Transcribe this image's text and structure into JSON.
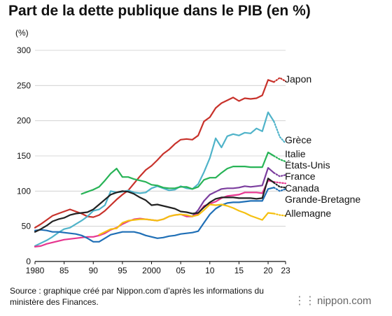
{
  "header": {
    "title": "Part de la dette publique dans le PIB (en %)",
    "unit": "(%)"
  },
  "footer": {
    "source": "Source : graphique créé par Nippon.com d’après les informations du ministère des Finances.",
    "brand": "nippon.com",
    "brand_icon": "nippon-logo-icon"
  },
  "chart_data": {
    "type": "line",
    "title": "Part de la dette publique dans le PIB (en %)",
    "ylabel": "(%)",
    "xlabel": "",
    "xlim": [
      1980,
      2023
    ],
    "ylim": [
      0,
      300
    ],
    "yticks": [
      0,
      50,
      100,
      150,
      200,
      250,
      300
    ],
    "xticks": [
      1980,
      1985,
      1990,
      1995,
      2000,
      2005,
      2010,
      2015,
      2020,
      2023
    ],
    "xtick_labels": [
      "1980",
      "85",
      "90",
      "95",
      "2000",
      "05",
      "10",
      "15",
      "20",
      "23"
    ],
    "grid": true,
    "legend": "right, end of lines",
    "projection_years": [
      2022,
      2023
    ],
    "series": [
      {
        "name": "Japon",
        "color": "#c8322b",
        "x": [
          1980,
          1981,
          1982,
          1983,
          1984,
          1985,
          1986,
          1987,
          1988,
          1989,
          1990,
          1991,
          1992,
          1993,
          1994,
          1995,
          1996,
          1997,
          1998,
          1999,
          2000,
          2001,
          2002,
          2003,
          2004,
          2005,
          2006,
          2007,
          2008,
          2009,
          2010,
          2011,
          2012,
          2013,
          2014,
          2015,
          2016,
          2017,
          2018,
          2019,
          2020,
          2021,
          2022,
          2023
        ],
        "values": [
          48,
          53,
          59,
          65,
          68,
          71,
          74,
          71,
          68,
          64,
          63,
          66,
          72,
          80,
          88,
          95,
          101,
          111,
          121,
          130,
          136,
          144,
          153,
          159,
          167,
          173,
          174,
          173,
          179,
          199,
          205,
          218,
          225,
          229,
          233,
          228,
          232,
          231,
          232,
          236,
          258,
          255,
          261,
          256
        ]
      },
      {
        "name": "Grèce",
        "color": "#4fb3c9",
        "x": [
          1980,
          1981,
          1982,
          1983,
          1984,
          1985,
          1986,
          1987,
          1988,
          1989,
          1990,
          1991,
          1992,
          1993,
          1994,
          1995,
          1996,
          1997,
          1998,
          1999,
          2000,
          2001,
          2002,
          2003,
          2004,
          2005,
          2006,
          2007,
          2008,
          2009,
          2010,
          2011,
          2012,
          2013,
          2014,
          2015,
          2016,
          2017,
          2018,
          2019,
          2020,
          2021,
          2022,
          2023
        ],
        "values": [
          22,
          26,
          30,
          35,
          41,
          46,
          48,
          53,
          58,
          64,
          72,
          74,
          80,
          100,
          98,
          99,
          101,
          98,
          97,
          98,
          104,
          107,
          104,
          101,
          102,
          107,
          104,
          103,
          110,
          127,
          147,
          175,
          162,
          178,
          181,
          179,
          183,
          182,
          189,
          185,
          212,
          199,
          177,
          168
        ]
      },
      {
        "name": "Italie",
        "color": "#27b356",
        "x": [
          1988,
          1989,
          1990,
          1991,
          1992,
          1993,
          1994,
          1995,
          1996,
          1997,
          1998,
          1999,
          2000,
          2001,
          2002,
          2003,
          2004,
          2005,
          2006,
          2007,
          2008,
          2009,
          2010,
          2011,
          2012,
          2013,
          2014,
          2015,
          2016,
          2017,
          2018,
          2019,
          2020,
          2021,
          2022,
          2023
        ],
        "values": [
          96,
          99,
          102,
          106,
          115,
          125,
          132,
          120,
          120,
          117,
          115,
          113,
          109,
          108,
          105,
          104,
          104,
          106,
          106,
          103,
          106,
          116,
          119,
          119,
          126,
          132,
          135,
          135,
          135,
          134,
          134,
          134,
          155,
          150,
          145,
          142
        ]
      },
      {
        "name": "États-Unis",
        "color": "#7b3d9e",
        "x": [
          2007,
          2008,
          2009,
          2010,
          2011,
          2012,
          2013,
          2014,
          2015,
          2016,
          2017,
          2018,
          2019,
          2020,
          2021,
          2022,
          2023
        ],
        "values": [
          64,
          73,
          86,
          95,
          99,
          103,
          104,
          104,
          105,
          107,
          106,
          107,
          108,
          133,
          126,
          121,
          123
        ]
      },
      {
        "name": "France",
        "color": "#e6368f",
        "x": [
          1980,
          1981,
          1982,
          1983,
          1984,
          1985,
          1986,
          1987,
          1988,
          1989,
          1990,
          1991,
          1992,
          1993,
          1994,
          1995,
          1996,
          1997,
          1998,
          1999,
          2000,
          2001,
          2002,
          2003,
          2004,
          2005,
          2006,
          2007,
          2008,
          2009,
          2010,
          2011,
          2012,
          2013,
          2014,
          2015,
          2016,
          2017,
          2018,
          2019,
          2020,
          2021,
          2022,
          2023
        ],
        "values": [
          21,
          22,
          25,
          27,
          29,
          31,
          32,
          33,
          34,
          35,
          35,
          37,
          40,
          45,
          48,
          53,
          57,
          60,
          61,
          60,
          59,
          58,
          60,
          64,
          66,
          67,
          64,
          64,
          68,
          79,
          82,
          85,
          90,
          93,
          94,
          95,
          98,
          98,
          98,
          97,
          115,
          113,
          112,
          111
        ]
      },
      {
        "name": "Canada",
        "color": "#1f6fb6",
        "x": [
          1980,
          1981,
          1982,
          1983,
          1984,
          1985,
          1986,
          1987,
          1988,
          1989,
          1990,
          1991,
          1992,
          1993,
          1994,
          1995,
          1996,
          1997,
          1998,
          1999,
          2000,
          2001,
          2002,
          2003,
          2004,
          2005,
          2006,
          2007,
          2008,
          2009,
          2010,
          2011,
          2012,
          2013,
          2014,
          2015,
          2016,
          2017,
          2018,
          2019,
          2020,
          2021,
          2022,
          2023
        ],
        "values": [
          44,
          45,
          44,
          42,
          42,
          41,
          40,
          39,
          37,
          33,
          28,
          28,
          33,
          38,
          40,
          42,
          42,
          42,
          40,
          37,
          35,
          33,
          34,
          36,
          37,
          39,
          40,
          41,
          43,
          55,
          67,
          75,
          80,
          83,
          84,
          84,
          85,
          86,
          86,
          86,
          103,
          105,
          100,
          103
        ]
      },
      {
        "name": "Grande-Bretagne",
        "color": "#222222",
        "x": [
          1980,
          1981,
          1982,
          1983,
          1984,
          1985,
          1986,
          1987,
          1988,
          1989,
          1990,
          1991,
          1992,
          1993,
          1994,
          1995,
          1996,
          1997,
          1998,
          1999,
          2000,
          2001,
          2002,
          2003,
          2004,
          2005,
          2006,
          2007,
          2008,
          2009,
          2010,
          2011,
          2012,
          2013,
          2014,
          2015,
          2016,
          2017,
          2018,
          2019,
          2020,
          2021,
          2022,
          2023
        ],
        "values": [
          42,
          46,
          51,
          57,
          60,
          62,
          66,
          68,
          69,
          70,
          74,
          81,
          88,
          95,
          98,
          100,
          99,
          96,
          91,
          87,
          80,
          81,
          79,
          77,
          75,
          71,
          70,
          68,
          69,
          77,
          84,
          89,
          91,
          91,
          91,
          90,
          90,
          90,
          89,
          90,
          118,
          112,
          106,
          105
        ]
      },
      {
        "name": "Allemagne",
        "color": "#f5c010",
        "x": [
          1991,
          1992,
          1993,
          1994,
          1995,
          1996,
          1997,
          1998,
          1999,
          2000,
          2001,
          2002,
          2003,
          2004,
          2005,
          2006,
          2007,
          2008,
          2009,
          2010,
          2011,
          2012,
          2013,
          2014,
          2015,
          2016,
          2017,
          2018,
          2019,
          2020,
          2021,
          2022,
          2023
        ],
        "values": [
          38,
          42,
          46,
          47,
          55,
          58,
          59,
          60,
          60,
          59,
          58,
          60,
          64,
          66,
          67,
          66,
          64,
          66,
          73,
          81,
          80,
          81,
          79,
          76,
          72,
          69,
          65,
          62,
          59,
          69,
          68,
          66,
          65
        ]
      }
    ],
    "legend_labels": [
      "Japon",
      "Grèce",
      "Italie",
      "États-Unis",
      "France",
      "Canada",
      "Grande-Bretagne",
      "Allemagne"
    ]
  }
}
